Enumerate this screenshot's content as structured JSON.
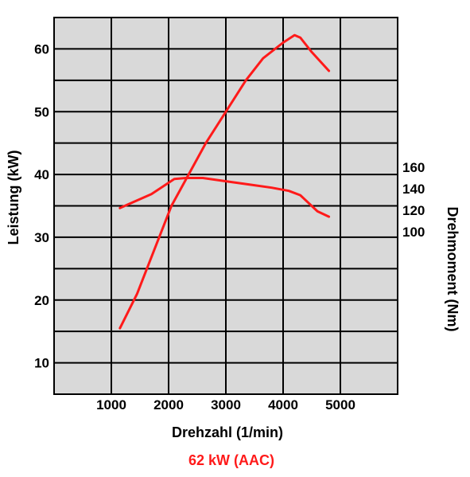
{
  "chart_data": {
    "type": "line",
    "caption": "62 kW (AAC)",
    "xlabel": "Drehzahl (1/min)",
    "ylabel": "Leistung (kW)",
    "y2label": "Drehmoment (Nm)",
    "xlim": [
      0,
      6000
    ],
    "ylim": [
      5,
      65
    ],
    "x_ticks": [
      1000,
      2000,
      3000,
      4000,
      5000
    ],
    "y_ticks": [
      10,
      20,
      30,
      40,
      50,
      60
    ],
    "y2_ticks": [
      100,
      120,
      140,
      160
    ],
    "y2_lim": [
      100,
      160
    ],
    "grid": true,
    "line_color": "#ff1a1a",
    "grid_color": "#000000",
    "plot_bg": "#d9d9d9",
    "series": [
      {
        "axis": "left",
        "x": [
          1150,
          1450,
          1750,
          2050,
          2350,
          2650,
          3000,
          3350,
          3650,
          4000,
          4200,
          4300,
          4500,
          4800
        ],
        "y": [
          15.5,
          21,
          28,
          35,
          40,
          45,
          50,
          55,
          58.5,
          61,
          62.2,
          61.8,
          59.5,
          56.5
        ]
      },
      {
        "axis": "right",
        "x": [
          1150,
          1400,
          1700,
          1900,
          2100,
          2300,
          2600,
          3000,
          3400,
          3800,
          4100,
          4300,
          4600,
          4800
        ],
        "y": [
          122,
          128,
          135,
          142,
          149,
          150,
          150,
          147,
          144,
          141,
          138,
          134,
          119,
          114
        ]
      }
    ]
  }
}
